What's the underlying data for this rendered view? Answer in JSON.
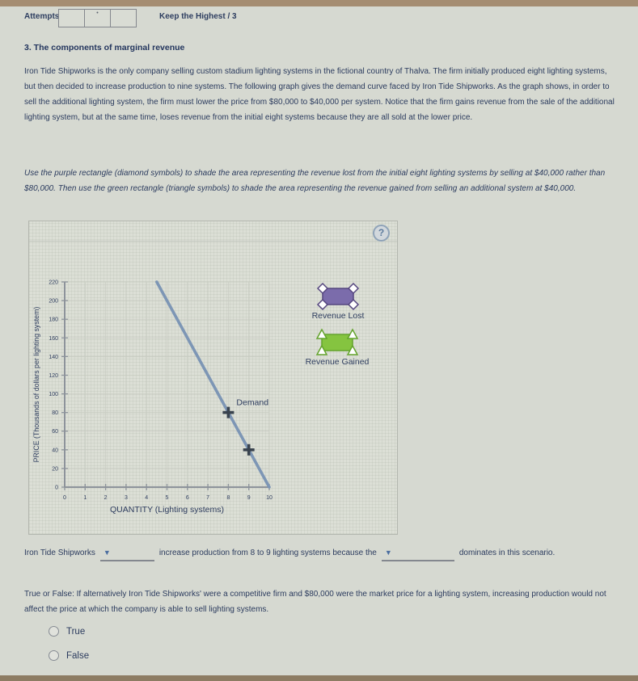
{
  "header": {
    "attempts_label": "Attempts",
    "attempts_marker": "•",
    "keep_highest_label": "Keep the Highest / 3"
  },
  "question": {
    "title": "3. The components of marginal revenue",
    "intro": "Iron Tide Shipworks is the only company selling custom stadium lighting systems in the fictional country of Thalva. The firm initially produced eight lighting systems, but then decided to increase production to nine systems. The following graph gives the demand curve faced by Iron Tide Shipworks. As the graph shows, in order to sell the additional lighting system, the firm must lower the price from $80,000 to $40,000 per system. Notice that the firm gains revenue from the sale of the additional lighting system, but at the same time, loses revenue from the initial eight systems because they are all sold at the lower price.",
    "instructions": "Use the purple rectangle (diamond symbols) to shade the area representing the revenue lost from the initial eight lighting systems by selling at $40,000 rather than $80,000. Then use the green rectangle (triangle symbols) to shade the area representing the revenue gained from selling an additional system at $40,000.",
    "help_icon": "?"
  },
  "chart_data": {
    "type": "line",
    "title": "",
    "xlabel": "QUANTITY (Lighting systems)",
    "ylabel": "PRICE (Thousands of dollars per lighting system)",
    "xlim": [
      0,
      10
    ],
    "ylim": [
      0,
      220
    ],
    "x_ticks": [
      0,
      1,
      2,
      3,
      4,
      5,
      6,
      7,
      8,
      9,
      10
    ],
    "y_ticks": [
      0,
      20,
      40,
      60,
      80,
      100,
      120,
      140,
      160,
      180,
      200,
      220
    ],
    "grid": true,
    "series": [
      {
        "name": "Demand",
        "x": [
          4.5,
          10
        ],
        "y": [
          220,
          0
        ],
        "color": "#7d96b5",
        "label_at": {
          "x": 8,
          "y": 80
        }
      }
    ],
    "point_markers": [
      {
        "x": 8,
        "y": 80,
        "shape": "plus"
      },
      {
        "x": 9,
        "y": 40,
        "shape": "plus"
      }
    ],
    "legend_position": "right",
    "legend": [
      {
        "label": "Revenue Lost",
        "color": "#7b6cab",
        "border": "#55467f",
        "symbol": "diamond"
      },
      {
        "label": "Revenue Gained",
        "color": "#85c440",
        "border": "#63a32c",
        "symbol": "triangle"
      }
    ]
  },
  "fill_in": {
    "prefix": "Iron Tide Shipworks",
    "dropdown1_value": "",
    "middle": "increase production from 8 to 9 lighting systems because the",
    "dropdown2_value": "",
    "suffix": "dominates in this scenario.",
    "dropdown_icon": "▼"
  },
  "tf": {
    "question": "True or False: If alternatively Iron Tide Shipworks' were a competitive firm and $80,000 were the market price for a lighting system, increasing production would not affect the price at which the company is able to sell lighting systems.",
    "options": [
      {
        "label": "True"
      },
      {
        "label": "False"
      }
    ]
  }
}
